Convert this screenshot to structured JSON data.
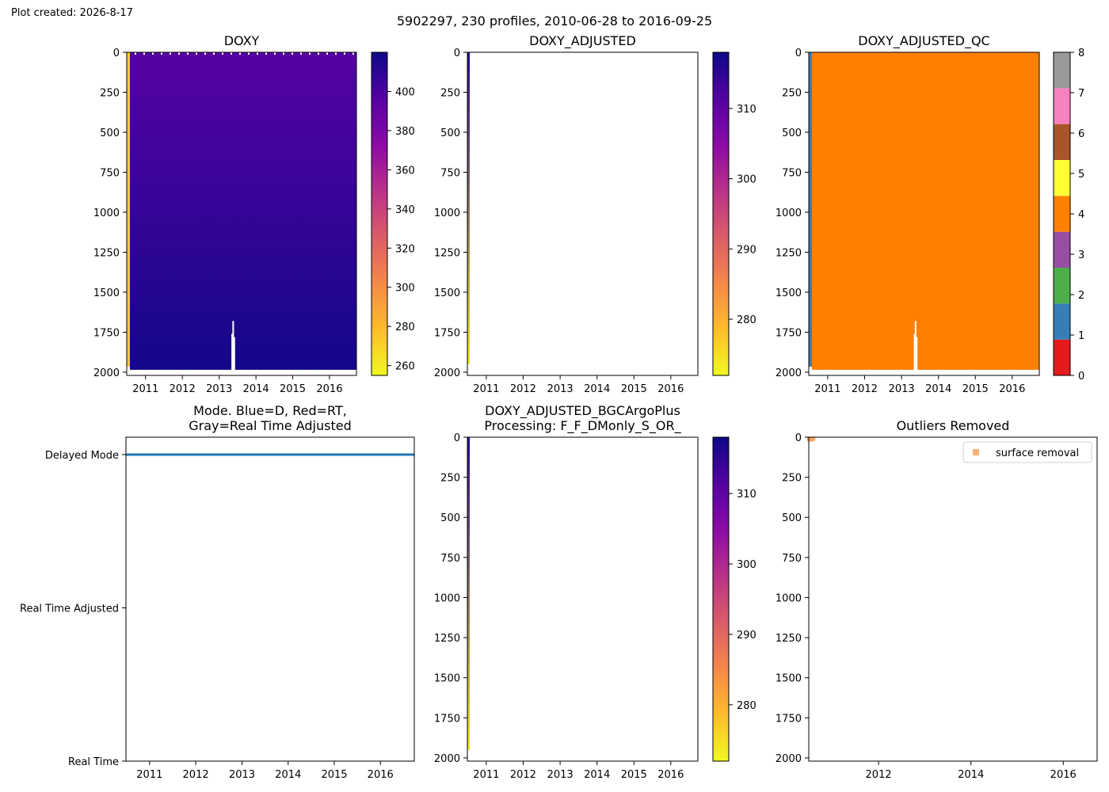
{
  "header": {
    "created": "Plot created: 2026-8-17",
    "suptitle": "5902297, 230 profiles, 2010-06-28 to 2016-09-25"
  },
  "chart_data": [
    {
      "type": "heatmap",
      "title": "DOXY",
      "x_range": [
        "2010-06-28",
        "2016-09-25"
      ],
      "x_ticks": [
        "2011",
        "2012",
        "2013",
        "2014",
        "2015",
        "2016"
      ],
      "ylim": [
        2020,
        0
      ],
      "y_ticks": [
        0,
        250,
        500,
        750,
        1000,
        1250,
        1500,
        1750,
        2000
      ],
      "colorbar": {
        "colormap": "plasma_r",
        "range": [
          255,
          420
        ],
        "ticks": [
          260,
          280,
          300,
          320,
          340,
          360,
          380,
          400
        ]
      },
      "surface_value": 395,
      "bottom_value": 418,
      "first_profile_value": 272,
      "deep_gaps": [
        {
          "date": "2013-05-10",
          "top": 1760
        },
        {
          "date": "2013-05-20",
          "top": 1680
        },
        {
          "date": "2013-05-31",
          "top": 1780
        }
      ]
    },
    {
      "type": "heatmap",
      "title": "DOXY_ADJUSTED",
      "x_range": [
        "2010-06-28",
        "2016-09-25"
      ],
      "x_ticks": [
        "2011",
        "2012",
        "2013",
        "2014",
        "2015",
        "2016"
      ],
      "ylim": [
        2020,
        0
      ],
      "y_ticks": [
        0,
        250,
        500,
        750,
        1000,
        1250,
        1500,
        1750,
        2000
      ],
      "colorbar": {
        "colormap": "plasma_r",
        "range": [
          272,
          318
        ],
        "ticks": [
          280,
          290,
          300,
          310
        ]
      },
      "profile": {
        "date_range": [
          "2010-06-28",
          "2010-07-20"
        ],
        "depth": [
          0,
          1950
        ],
        "values": [
          316,
          274
        ]
      }
    },
    {
      "type": "heatmap",
      "title": "DOXY_ADJUSTED_QC",
      "x_range": [
        "2010-06-28",
        "2016-09-25"
      ],
      "x_ticks": [
        "2011",
        "2012",
        "2013",
        "2014",
        "2015",
        "2016"
      ],
      "ylim": [
        2020,
        0
      ],
      "y_ticks": [
        0,
        250,
        500,
        750,
        1000,
        1250,
        1500,
        1750,
        2000
      ],
      "colorbar": {
        "range": [
          0,
          8
        ],
        "ticks": [
          0,
          1,
          2,
          3,
          4,
          5,
          6,
          7,
          8
        ],
        "colors": [
          "#e41a1c",
          "#377eb8",
          "#4daf4a",
          "#984ea3",
          "#ff7f00",
          "#ffff33",
          "#a65628",
          "#f781bf",
          "#999999"
        ]
      },
      "first_profile_flag": 1,
      "dominant_flag": 4,
      "deep_gaps": [
        {
          "date": "2013-05-10",
          "top": 1760
        },
        {
          "date": "2013-05-20",
          "top": 1680
        },
        {
          "date": "2013-05-31",
          "top": 1780
        }
      ]
    },
    {
      "type": "line",
      "title": "Mode. Blue=D, Red=RT,\nGray=Real Time Adjusted",
      "x_range": [
        "2010-06-28",
        "2016-09-25"
      ],
      "x_ticks": [
        "2011",
        "2012",
        "2013",
        "2014",
        "2015",
        "2016"
      ],
      "y_categories": [
        "Real Time",
        "Real Time Adjusted",
        "Delayed Mode"
      ],
      "series": [
        {
          "mode": "Delayed Mode",
          "color": "#1f77b4",
          "x_range": [
            "2010-06-28",
            "2016-09-25"
          ]
        }
      ]
    },
    {
      "type": "heatmap",
      "title": "DOXY_ADJUSTED_BGCArgoPlus\nProcessing: F_F_DMonly_S_OR_",
      "x_range": [
        "2010-06-28",
        "2016-09-25"
      ],
      "x_ticks": [
        "2011",
        "2012",
        "2013",
        "2014",
        "2015",
        "2016"
      ],
      "ylim": [
        2020,
        0
      ],
      "y_ticks": [
        0,
        250,
        500,
        750,
        1000,
        1250,
        1500,
        1750,
        2000
      ],
      "colorbar": {
        "colormap": "plasma_r",
        "range": [
          272,
          318
        ],
        "ticks": [
          280,
          290,
          300,
          310
        ]
      },
      "profile": {
        "date_range": [
          "2010-06-28",
          "2010-07-20"
        ],
        "depth": [
          0,
          1950
        ],
        "values": [
          316,
          274
        ]
      }
    },
    {
      "type": "scatter",
      "title": "Outliers Removed",
      "x_range": [
        "2010-06-28",
        "2016-09-25"
      ],
      "x_ticks": [
        "2012",
        "2014",
        "2016"
      ],
      "ylim": [
        2020,
        0
      ],
      "y_ticks": [
        0,
        250,
        500,
        750,
        1000,
        1250,
        1500,
        1750,
        2000
      ],
      "legend": {
        "label": "surface removal",
        "placement": "upper-right",
        "color": "#f4a460"
      },
      "points": [
        {
          "date": "2010-07-01",
          "depth": 2
        },
        {
          "date": "2010-07-05",
          "depth": 5
        },
        {
          "date": "2010-07-10",
          "depth": 8
        },
        {
          "date": "2010-07-15",
          "depth": 3
        },
        {
          "date": "2010-07-20",
          "depth": 6
        },
        {
          "date": "2010-07-25",
          "depth": 4
        },
        {
          "date": "2010-08-01",
          "depth": 2
        }
      ]
    }
  ]
}
